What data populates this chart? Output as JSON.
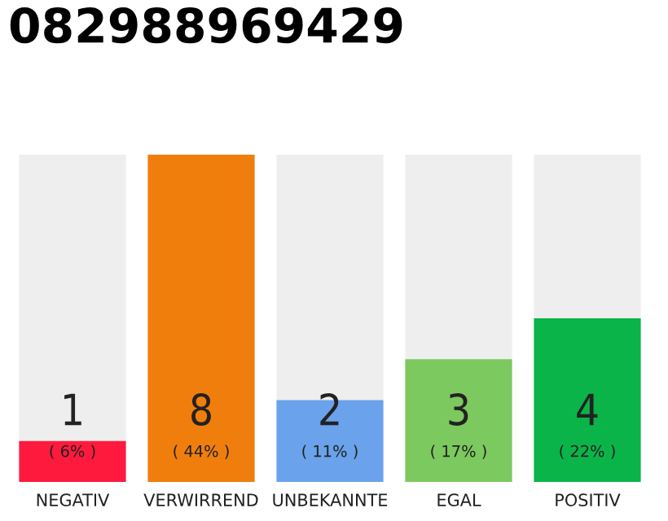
{
  "chart_data": {
    "type": "bar",
    "title": "082988969429",
    "categories": [
      "NEGATIV",
      "VERWIRREND",
      "UNBEKANNTE",
      "EGAL",
      "POSITIV"
    ],
    "values": [
      1,
      8,
      2,
      3,
      4
    ],
    "colors": [
      "#fe1a3d",
      "#f07e0c",
      "#6aa2eb",
      "#7cc95f",
      "#0ab449"
    ],
    "data_labels": true,
    "ylim": [
      0,
      8
    ],
    "tick_labels": "x",
    "grid": false,
    "legend": false,
    "annotations": [
      "( 6% )",
      "( 44% )",
      "( 11% )",
      "( 17% )",
      "( 22% )"
    ]
  }
}
